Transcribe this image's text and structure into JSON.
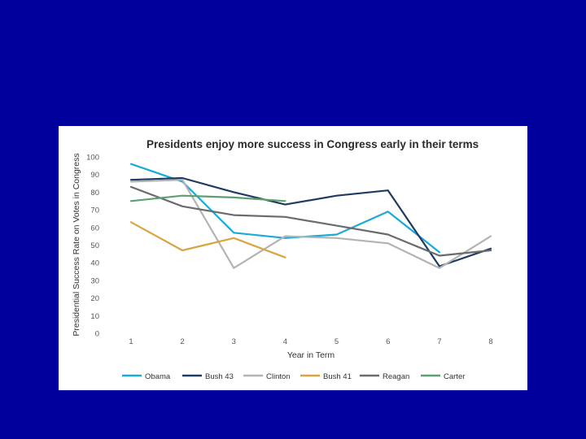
{
  "slide": {
    "background": "#00009c"
  },
  "chart_data": {
    "type": "line",
    "title": "Presidents enjoy more success in Congress early in their terms",
    "xlabel": "Year in Term",
    "ylabel": "Presidential Success Rate on Votes in Congress",
    "categories": [
      "1",
      "2",
      "3",
      "4",
      "5",
      "6",
      "7",
      "8"
    ],
    "ylim": [
      0,
      100
    ],
    "yticks": [
      0,
      10,
      20,
      30,
      40,
      50,
      60,
      70,
      80,
      90,
      100
    ],
    "grid": false,
    "legend_position": "bottom",
    "series": [
      {
        "name": "Obama",
        "color": "#1ba9d8",
        "values": [
          96,
          86,
          57,
          54,
          56,
          69,
          46,
          null
        ]
      },
      {
        "name": "Bush 43",
        "color": "#1f3a63",
        "values": [
          87,
          88,
          80,
          73,
          78,
          81,
          38,
          48
        ]
      },
      {
        "name": "Clinton",
        "color": "#b3b3b3",
        "values": [
          86,
          87,
          37,
          55,
          54,
          51,
          37,
          55
        ]
      },
      {
        "name": "Bush 41",
        "color": "#d9a441",
        "values": [
          63,
          47,
          54,
          43,
          null,
          null,
          null,
          null
        ]
      },
      {
        "name": "Reagan",
        "color": "#6b6b6b",
        "values": [
          83,
          72,
          67,
          66,
          61,
          56,
          44,
          47
        ]
      },
      {
        "name": "Carter",
        "color": "#5f9e6e",
        "values": [
          75,
          78,
          77,
          75,
          null,
          null,
          null,
          null
        ]
      }
    ]
  }
}
